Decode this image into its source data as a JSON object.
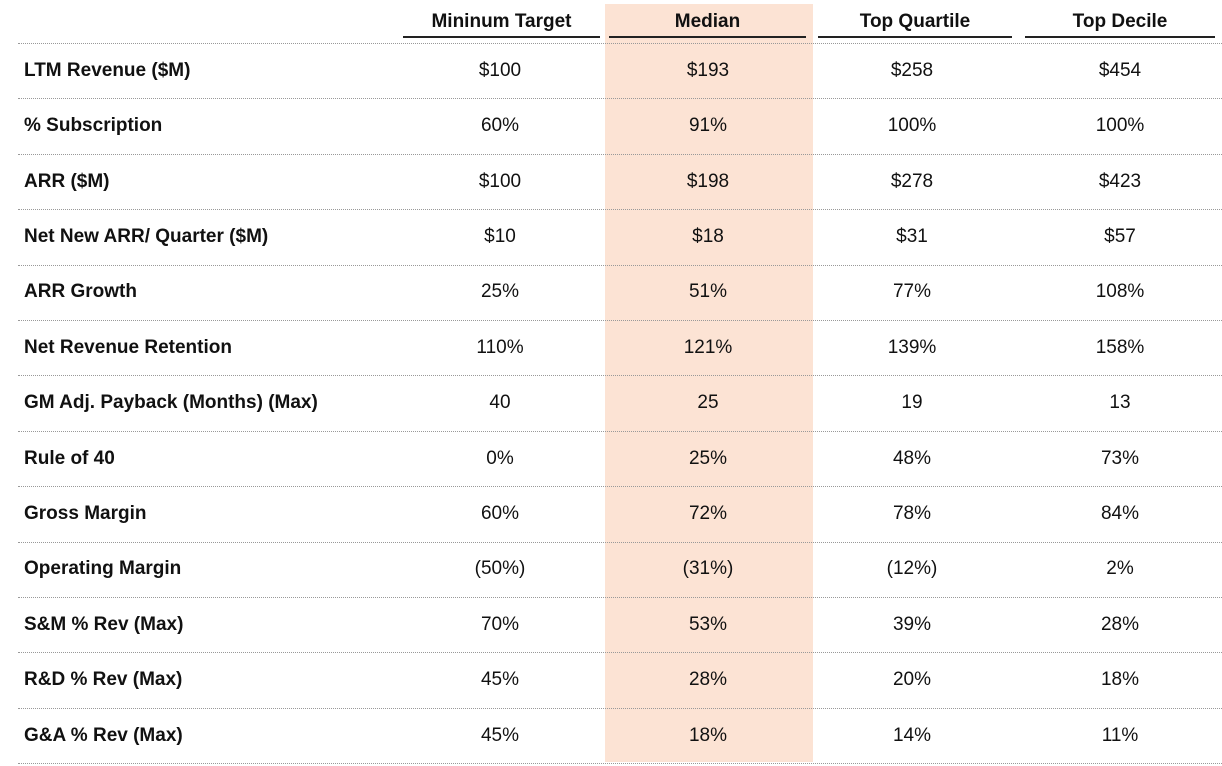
{
  "table": {
    "header": [
      "Mininum Target",
      "Median",
      "Top Quartile",
      "Top Decile"
    ],
    "rows": [
      {
        "label": "LTM Revenue ($M)",
        "values": [
          "$100",
          "$193",
          "$258",
          "$454"
        ]
      },
      {
        "label": "% Subscription",
        "values": [
          "60%",
          "91%",
          "100%",
          "100%"
        ]
      },
      {
        "label": "ARR ($M)",
        "values": [
          "$100",
          "$198",
          "$278",
          "$423"
        ]
      },
      {
        "label": "Net New ARR/ Quarter ($M)",
        "values": [
          "$10",
          "$18",
          "$31",
          "$57"
        ]
      },
      {
        "label": "ARR Growth",
        "values": [
          "25%",
          "51%",
          "77%",
          "108%"
        ]
      },
      {
        "label": "Net Revenue Retention",
        "values": [
          "110%",
          "121%",
          "139%",
          "158%"
        ]
      },
      {
        "label": "GM Adj. Payback (Months) (Max)",
        "values": [
          "40",
          "25",
          "19",
          "13"
        ]
      },
      {
        "label": "Rule of 40",
        "values": [
          "0%",
          "25%",
          "48%",
          "73%"
        ]
      },
      {
        "label": "Gross Margin",
        "values": [
          "60%",
          "72%",
          "78%",
          "84%"
        ]
      },
      {
        "label": "Operating Margin",
        "values": [
          "(50%)",
          "(31%)",
          "(12%)",
          "2%"
        ]
      },
      {
        "label": "S&M % Rev (Max)",
        "values": [
          "70%",
          "53%",
          "39%",
          "28%"
        ]
      },
      {
        "label": "R&D % Rev (Max)",
        "values": [
          "45%",
          "28%",
          "20%",
          "18%"
        ]
      },
      {
        "label": "G&A % Rev (Max)",
        "values": [
          "45%",
          "18%",
          "14%",
          "11%"
        ]
      }
    ]
  }
}
